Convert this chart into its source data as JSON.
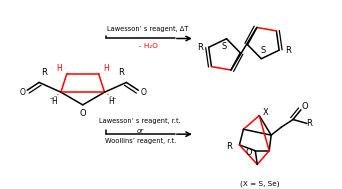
{
  "bg_color": "#ffffff",
  "black": "#000000",
  "red": "#ff0000",
  "gray": "#888888",
  "top_reagent": "Lawesson’ s reagent, ΔT",
  "top_sub": "- H₂O",
  "bottom_reagent1": "Lawesson’ s reagent, r.t.",
  "bottom_or": "or",
  "bottom_reagent2": "Woollins’ reagent, r.t.",
  "bottom_note": "(X = S, Se)"
}
